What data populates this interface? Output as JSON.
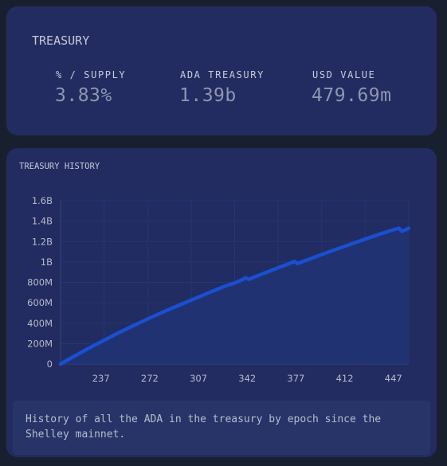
{
  "treasury": {
    "title": "TREASURY",
    "stats": [
      {
        "label": "% / SUPPLY",
        "value": "3.83%"
      },
      {
        "label": "ADA TREASURY",
        "value": "1.39b"
      },
      {
        "label": "USD VALUE",
        "value": "479.69m"
      }
    ]
  },
  "history": {
    "title": "TREASURY HISTORY",
    "description": "History of all the ADA in the treasury by epoch since the Shelley mainnet."
  },
  "colors": {
    "page_background": "#18202f",
    "card_background": "#222c60",
    "line": "#1a4fcf",
    "area": "#203374"
  },
  "chart_data": {
    "type": "area",
    "title": "TREASURY HISTORY",
    "xlabel": "",
    "ylabel": "",
    "xlim": [
      208,
      458
    ],
    "ylim": [
      0,
      1600000000
    ],
    "x_ticks": [
      237,
      272,
      307,
      342,
      377,
      412,
      447
    ],
    "x_tick_labels": [
      "237",
      "272",
      "307",
      "342",
      "377",
      "412",
      "447"
    ],
    "y_ticks": [
      0,
      200000000,
      400000000,
      600000000,
      800000000,
      1000000000,
      1200000000,
      1400000000,
      1600000000
    ],
    "y_tick_labels": [
      "0",
      "200M",
      "400M",
      "600M",
      "800M",
      "1B",
      "1.2B",
      "1.4B",
      "1.6B"
    ],
    "grid": true,
    "legend": "none",
    "series": [
      {
        "x": [
          208,
          215,
          222,
          229,
          236,
          243,
          250,
          257,
          264,
          271,
          278,
          285,
          292,
          299,
          306,
          313,
          320,
          327,
          332,
          334,
          339,
          341,
          343,
          350,
          357,
          364,
          371,
          376,
          378,
          385,
          392,
          399,
          406,
          413,
          420,
          427,
          434,
          441,
          448,
          451,
          453,
          458
        ],
        "y": [
          0,
          55000000,
          108000000,
          160000000,
          210000000,
          260000000,
          308000000,
          355000000,
          400000000,
          445000000,
          488000000,
          530000000,
          570000000,
          610000000,
          650000000,
          690000000,
          730000000,
          768000000,
          790000000,
          800000000,
          830000000,
          845000000,
          830000000,
          868000000,
          905000000,
          942000000,
          978000000,
          1005000000,
          985000000,
          1020000000,
          1055000000,
          1090000000,
          1125000000,
          1158000000,
          1192000000,
          1225000000,
          1258000000,
          1290000000,
          1320000000,
          1330000000,
          1300000000,
          1330000000
        ]
      }
    ]
  }
}
